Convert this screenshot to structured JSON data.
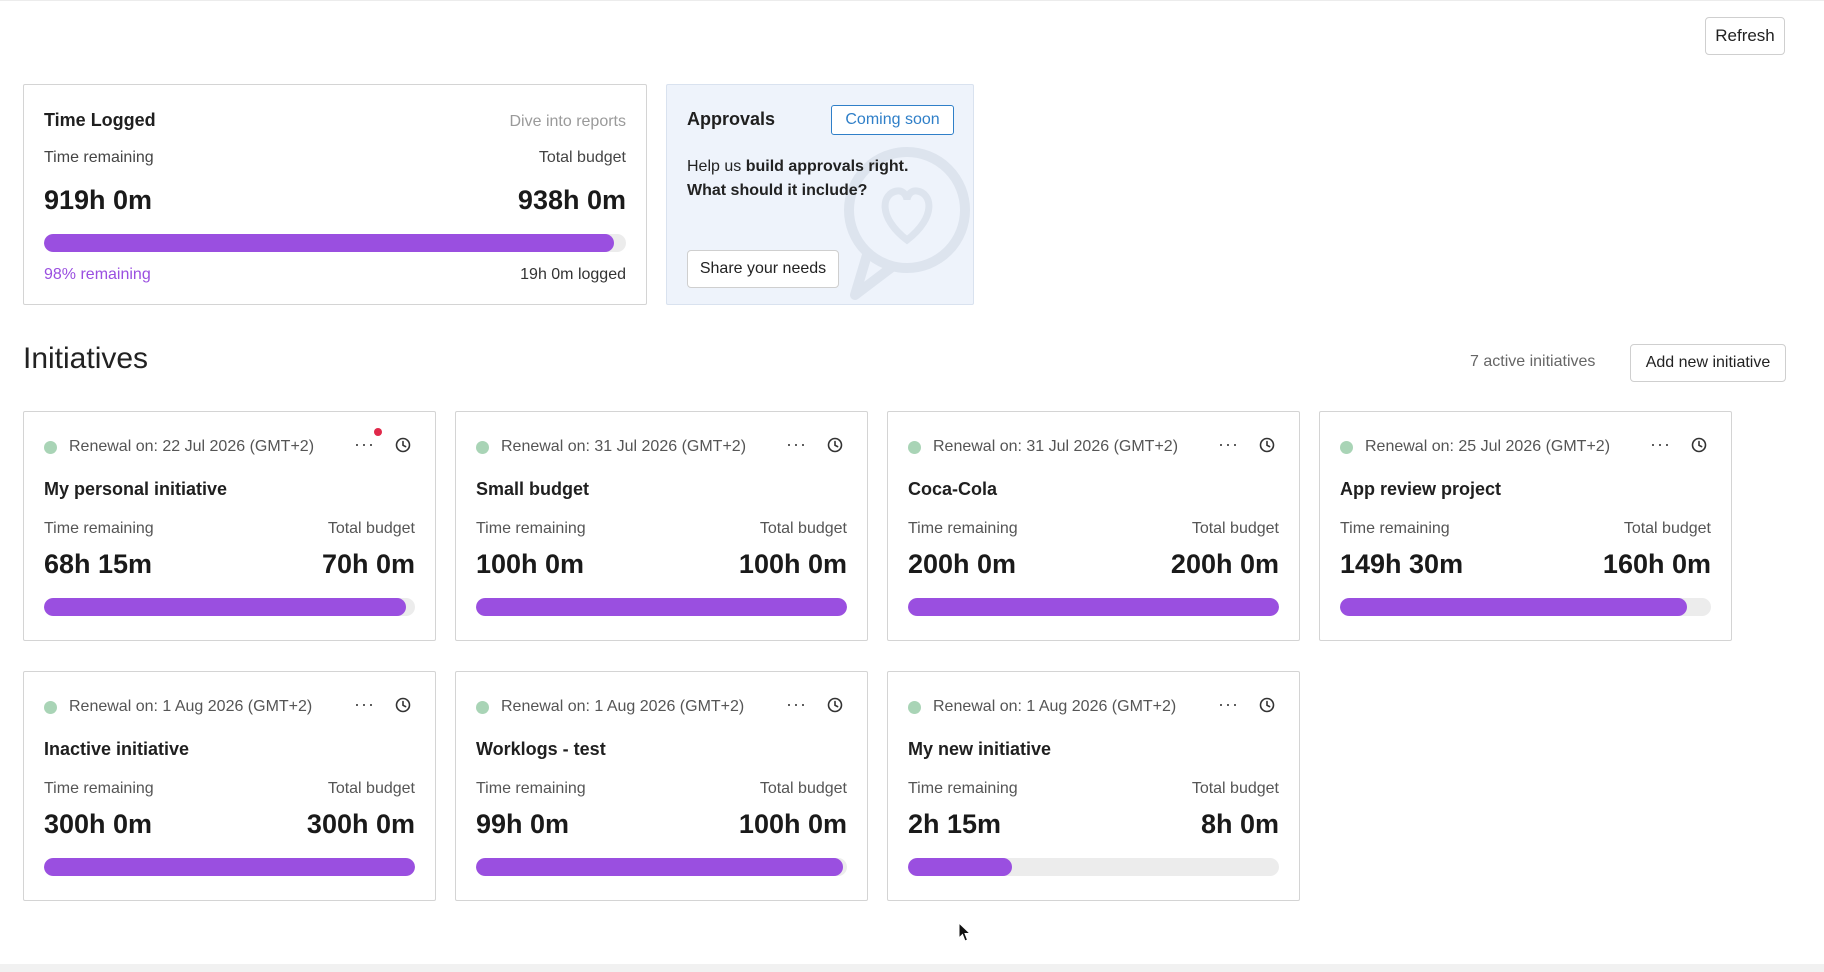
{
  "header": {
    "refresh_label": "Refresh"
  },
  "time_logged": {
    "title": "Time Logged",
    "link": "Dive into reports",
    "remaining_label": "Time remaining",
    "budget_label": "Total budget",
    "remaining_value": "919h 0m",
    "budget_value": "938h 0m",
    "progress": 0.98,
    "remaining_pct": "98% remaining",
    "logged": "19h 0m logged"
  },
  "approvals": {
    "title": "Approvals",
    "badge": "Coming soon",
    "text_prefix": "Help us ",
    "text_bold": "build approvals right. What should it include?",
    "button": "Share your needs"
  },
  "initiatives_section": {
    "title": "Initiatives",
    "count_text": "7 active initiatives",
    "add_button": "Add new initiative"
  },
  "initiatives": [
    {
      "renewal": "Renewal on: 22 Jul 2026 (GMT+2)",
      "name": "My personal initiative",
      "remaining": "68h 15m",
      "budget": "70h 0m",
      "progress": 0.975,
      "notification": true
    },
    {
      "renewal": "Renewal on: 31 Jul 2026 (GMT+2)",
      "name": "Small budget",
      "remaining": "100h 0m",
      "budget": "100h 0m",
      "progress": 1.0
    },
    {
      "renewal": "Renewal on: 31 Jul 2026 (GMT+2)",
      "name": "Coca-Cola",
      "remaining": "200h 0m",
      "budget": "200h 0m",
      "progress": 1.0
    },
    {
      "renewal": "Renewal on: 25 Jul 2026 (GMT+2)",
      "name": "App review project",
      "remaining": "149h 30m",
      "budget": "160h 0m",
      "progress": 0.934
    },
    {
      "renewal": "Renewal on: 1 Aug 2026 (GMT+2)",
      "name": "Inactive initiative",
      "remaining": "300h 0m",
      "budget": "300h 0m",
      "progress": 1.0
    },
    {
      "renewal": "Renewal on: 1 Aug 2026 (GMT+2)",
      "name": "Worklogs - test",
      "remaining": "99h 0m",
      "budget": "100h 0m",
      "progress": 0.99
    },
    {
      "renewal": "Renewal on: 1 Aug 2026 (GMT+2)",
      "name": "My new initiative",
      "remaining": "2h 15m",
      "budget": "8h 0m",
      "progress": 0.281
    }
  ],
  "labels": {
    "time_remaining": "Time remaining",
    "total_budget": "Total budget",
    "more": "···"
  },
  "colors": {
    "accent": "#9a4fe0",
    "track": "#ececec",
    "status_dot": "#a9d4b6",
    "badge_blue": "#2f7fc8",
    "notification": "#e0294a"
  }
}
